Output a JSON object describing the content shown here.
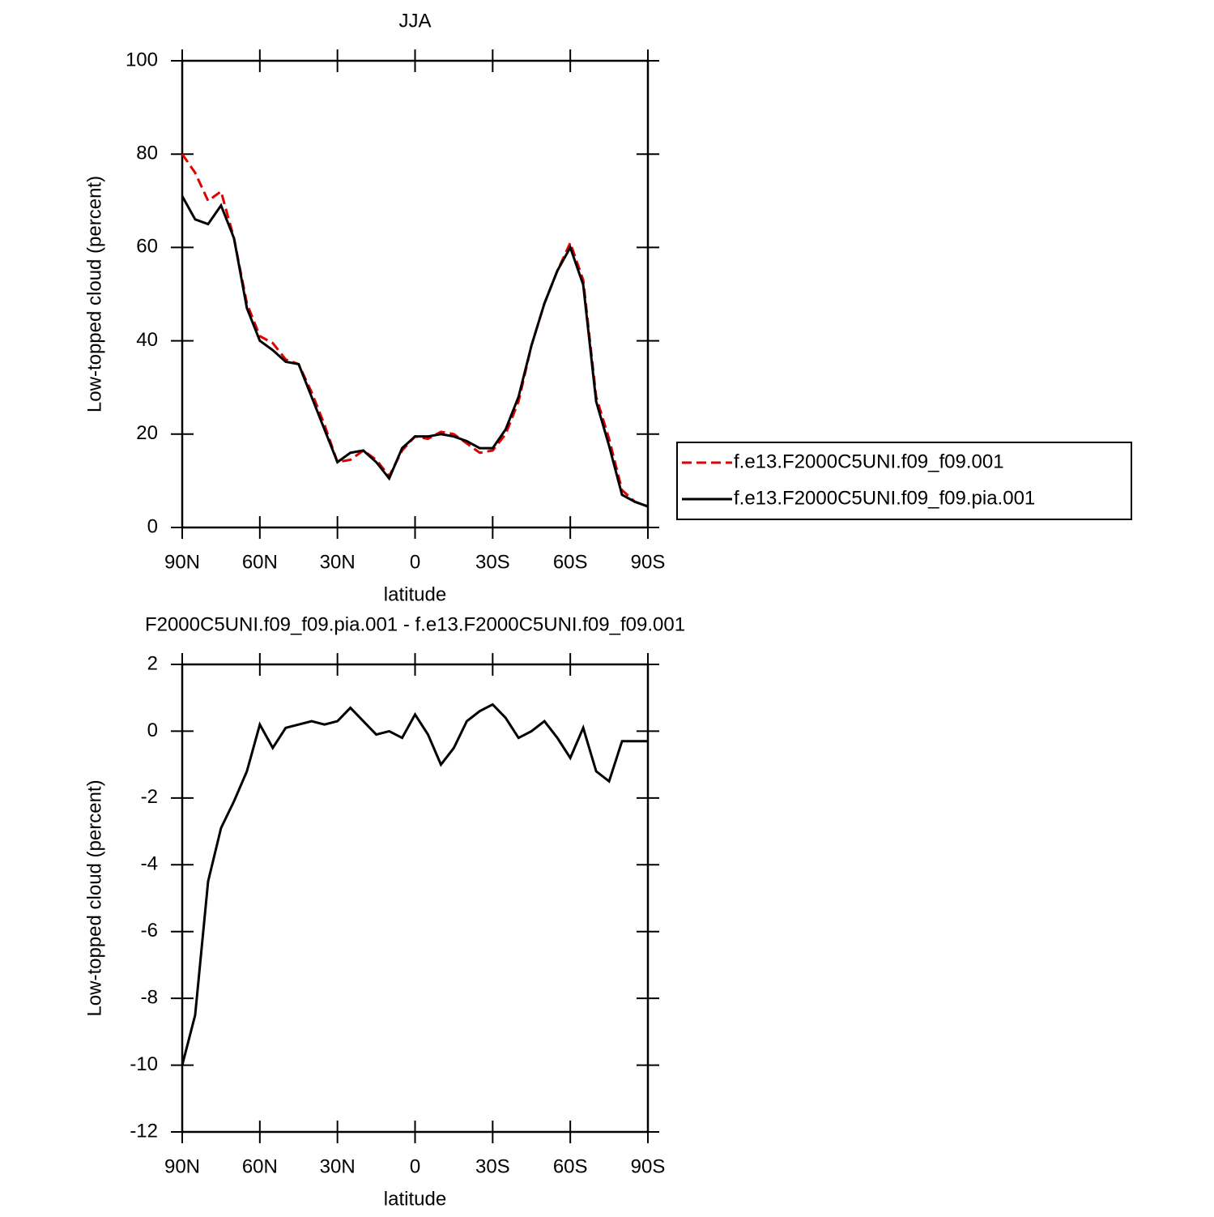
{
  "chart_data": [
    {
      "type": "line",
      "title": "JJA",
      "xlabel": "latitude",
      "ylabel": "Low-topped cloud (percent)",
      "x": [
        90,
        85,
        80,
        75,
        70,
        65,
        60,
        55,
        50,
        45,
        40,
        35,
        30,
        25,
        20,
        15,
        10,
        5,
        0,
        -5,
        -10,
        -15,
        -20,
        -25,
        -30,
        -35,
        -40,
        -45,
        -50,
        -55,
        -60,
        -65,
        -70,
        -75,
        -80,
        -85,
        -90
      ],
      "xlim": [
        90,
        -90
      ],
      "xticks": [
        {
          "value": 90,
          "label": "90N"
        },
        {
          "value": 60,
          "label": "60N"
        },
        {
          "value": 30,
          "label": "30N"
        },
        0,
        {
          "value": -30,
          "label": "30S"
        },
        {
          "value": -60,
          "label": "60S"
        },
        {
          "value": -90,
          "label": "90S"
        }
      ],
      "ylim": [
        0,
        100
      ],
      "yticks": [
        0,
        20,
        40,
        60,
        80,
        100
      ],
      "legend": "right",
      "series": [
        {
          "name": "f.e13.F2000C5UNI.f09_f09.001",
          "color": "#e00000",
          "dashed": true,
          "values": [
            80,
            76,
            70,
            72,
            62,
            48,
            41,
            39.5,
            36,
            35,
            29,
            22,
            14,
            14.5,
            16.5,
            14.5,
            11,
            16.5,
            19.5,
            19,
            20.5,
            20,
            18,
            16,
            16.5,
            20,
            27,
            39,
            48,
            55,
            61,
            53,
            28,
            19,
            8,
            5.5,
            4.5
          ]
        },
        {
          "name": "f.e13.F2000C5UNI.f09_f09.pia.001",
          "color": "#000000",
          "dashed": false,
          "values": [
            71,
            66,
            65,
            69,
            62,
            47,
            40,
            38,
            35.5,
            35,
            28,
            21,
            14,
            16,
            16.5,
            14,
            10.5,
            17,
            19.5,
            19.5,
            20,
            19.5,
            18.5,
            17,
            17,
            21,
            28,
            39,
            48,
            55,
            60,
            52,
            27,
            17.5,
            7,
            5.5,
            4.5
          ]
        }
      ]
    },
    {
      "type": "line",
      "title": "F2000C5UNI.f09_f09.pia.001 - f.e13.F2000C5UNI.f09_f09.001",
      "xlabel": "latitude",
      "ylabel": "Low-topped cloud (percent)",
      "x": [
        90,
        85,
        80,
        75,
        70,
        65,
        60,
        55,
        50,
        45,
        40,
        35,
        30,
        25,
        20,
        15,
        10,
        5,
        0,
        -5,
        -10,
        -15,
        -20,
        -25,
        -30,
        -35,
        -40,
        -45,
        -50,
        -55,
        -60,
        -65,
        -70,
        -75,
        -80,
        -85,
        -90
      ],
      "xlim": [
        90,
        -90
      ],
      "xticks": [
        {
          "value": 90,
          "label": "90N"
        },
        {
          "value": 60,
          "label": "60N"
        },
        {
          "value": 30,
          "label": "30N"
        },
        0,
        {
          "value": -30,
          "label": "30S"
        },
        {
          "value": -60,
          "label": "60S"
        },
        {
          "value": -90,
          "label": "90S"
        }
      ],
      "ylim": [
        -12,
        2
      ],
      "yticks": [
        -12,
        -10,
        -8,
        -6,
        -4,
        -2,
        0,
        2
      ],
      "series": [
        {
          "color": "#000000",
          "dashed": false,
          "values": [
            -10,
            -8.5,
            -4.5,
            -2.9,
            -2.1,
            -1.2,
            0.2,
            -0.5,
            0.1,
            0.2,
            0.3,
            0.2,
            0.3,
            0.7,
            0.3,
            -0.1,
            0,
            -0.2,
            0.5,
            -0.1,
            -1.0,
            -0.5,
            0.3,
            0.6,
            0.8,
            0.4,
            -0.2,
            0,
            0.3,
            -0.2,
            -0.8,
            0.1,
            -1.2,
            -1.5,
            -0.3,
            -0.3,
            -0.3
          ]
        }
      ]
    }
  ]
}
